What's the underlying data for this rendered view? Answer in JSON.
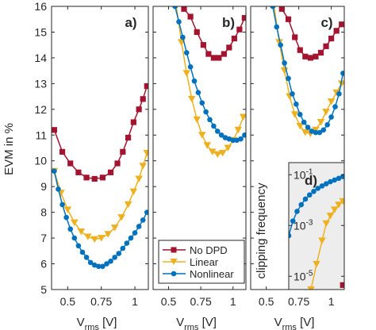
{
  "colors": {
    "no_dpd": "#A2142F",
    "linear": "#EDB120",
    "nonlinear": "#0072BD",
    "inset_bg": "#ededed"
  },
  "legend": {
    "entries": [
      {
        "name": "No DPD",
        "marker": "square",
        "color": "#A2142F"
      },
      {
        "name": "Linear",
        "marker": "triangle-down",
        "color": "#EDB120"
      },
      {
        "name": "Nonlinear",
        "marker": "circle",
        "color": "#0072BD"
      }
    ],
    "placement": "bottom-right of panel b"
  },
  "chart_data": [
    {
      "type": "line",
      "panel": "a)",
      "xlabel": "V_rms [V]",
      "xlabel_main": "V",
      "xlabel_sub": "rms",
      "xlabel_unit": "[V]",
      "ylabel": "EVM in %",
      "xlim": [
        0.38,
        1.1
      ],
      "ylim": [
        5,
        16
      ],
      "xticks": [
        0.5,
        0.75,
        1
      ],
      "xtick_labels": [
        "0.5",
        "0.75",
        "1"
      ],
      "yticks": [
        5,
        6,
        7,
        8,
        9,
        10,
        11,
        12,
        13,
        14,
        15,
        16
      ],
      "ytick_labels": [
        "5",
        "6",
        "7",
        "8",
        "9",
        "10",
        "11",
        "12",
        "13",
        "14",
        "15",
        "16"
      ],
      "series": [
        {
          "name": "No DPD",
          "marker": "square",
          "color": "#A2142F",
          "x": [
            0.4,
            0.46,
            0.52,
            0.58,
            0.64,
            0.7,
            0.76,
            0.82,
            0.87,
            0.91,
            0.95,
            0.99,
            1.03,
            1.06,
            1.09
          ],
          "y": [
            11.2,
            10.35,
            9.9,
            9.55,
            9.35,
            9.3,
            9.35,
            9.55,
            9.9,
            10.35,
            10.9,
            11.5,
            12.0,
            12.4,
            12.9
          ]
        },
        {
          "name": "Linear",
          "marker": "triangle-down",
          "color": "#EDB120",
          "x": [
            0.4,
            0.45,
            0.5,
            0.55,
            0.6,
            0.65,
            0.7,
            0.75,
            0.8,
            0.85,
            0.9,
            0.95,
            0.99,
            1.03,
            1.06,
            1.09
          ],
          "y": [
            9.6,
            8.75,
            8.1,
            7.6,
            7.25,
            7.05,
            6.95,
            7.0,
            7.15,
            7.4,
            7.8,
            8.3,
            8.8,
            9.3,
            9.8,
            10.3
          ]
        },
        {
          "name": "Nonlinear",
          "marker": "circle",
          "color": "#0072BD",
          "x": [
            0.4,
            0.43,
            0.46,
            0.49,
            0.52,
            0.55,
            0.58,
            0.61,
            0.64,
            0.67,
            0.7,
            0.73,
            0.76,
            0.79,
            0.82,
            0.85,
            0.88,
            0.91,
            0.94,
            0.97,
            1.0,
            1.03,
            1.06,
            1.09
          ],
          "y": [
            9.6,
            8.9,
            8.3,
            7.8,
            7.35,
            7.0,
            6.7,
            6.45,
            6.25,
            6.05,
            5.95,
            5.9,
            5.9,
            6.0,
            6.1,
            6.25,
            6.4,
            6.6,
            6.8,
            7.0,
            7.2,
            7.45,
            7.7,
            8.0
          ]
        }
      ]
    },
    {
      "type": "line",
      "panel": "b)",
      "xlabel": "V_rms [V]",
      "xlabel_main": "V",
      "xlabel_sub": "rms",
      "xlabel_unit": "[V]",
      "xlim": [
        0.38,
        1.1
      ],
      "ylim": [
        5,
        16
      ],
      "xticks": [
        0.5,
        0.75,
        1
      ],
      "xtick_labels": [
        "0.5",
        "0.75",
        "1"
      ],
      "series": [
        {
          "name": "No DPD",
          "marker": "square",
          "color": "#A2142F",
          "x": [
            0.62,
            0.67,
            0.72,
            0.77,
            0.81,
            0.85,
            0.89,
            0.93,
            0.97,
            1.01,
            1.05,
            1.09
          ],
          "y": [
            15.9,
            15.6,
            15.0,
            14.5,
            14.15,
            14.0,
            14.0,
            14.15,
            14.4,
            14.75,
            15.1,
            15.55
          ]
        },
        {
          "name": "Linear",
          "marker": "triangle-down",
          "color": "#EDB120",
          "x": [
            0.56,
            0.6,
            0.64,
            0.68,
            0.72,
            0.76,
            0.8,
            0.84,
            0.88,
            0.92,
            0.96,
            1.0,
            1.04,
            1.08
          ],
          "y": [
            16.0,
            14.6,
            13.4,
            12.4,
            11.6,
            11.0,
            10.6,
            10.35,
            10.25,
            10.3,
            10.5,
            10.8,
            11.2,
            11.7
          ]
        },
        {
          "name": "Nonlinear",
          "marker": "circle",
          "color": "#0072BD",
          "x": [
            0.55,
            0.58,
            0.61,
            0.64,
            0.67,
            0.7,
            0.73,
            0.76,
            0.79,
            0.82,
            0.85,
            0.88,
            0.91,
            0.94,
            0.97,
            1.0,
            1.03,
            1.06,
            1.09
          ],
          "y": [
            16.0,
            15.4,
            14.8,
            14.2,
            13.65,
            13.1,
            12.65,
            12.25,
            11.9,
            11.6,
            11.35,
            11.15,
            11.0,
            10.9,
            10.85,
            10.8,
            10.8,
            10.85,
            11.0
          ]
        }
      ]
    },
    {
      "type": "line",
      "panel": "c)",
      "xlabel": "V_rms [V]",
      "xlabel_main": "V",
      "xlabel_sub": "rms",
      "xlabel_unit": "[V]",
      "xlim": [
        0.38,
        1.1
      ],
      "ylim": [
        5,
        16
      ],
      "xticks": [
        0.5,
        0.75,
        1
      ],
      "xtick_labels": [
        "0.5",
        "0.75",
        "1"
      ],
      "series": [
        {
          "name": "No DPD",
          "marker": "square",
          "color": "#A2142F",
          "x": [
            0.62,
            0.67,
            0.72,
            0.76,
            0.8,
            0.84,
            0.88,
            0.92,
            0.96,
            1.0,
            1.04,
            1.08
          ],
          "y": [
            15.9,
            15.5,
            14.8,
            14.3,
            14.05,
            14.0,
            14.05,
            14.2,
            14.45,
            14.75,
            15.05,
            15.3
          ]
        },
        {
          "name": "Linear",
          "marker": "triangle-down",
          "color": "#EDB120",
          "x": [
            0.56,
            0.6,
            0.64,
            0.68,
            0.72,
            0.76,
            0.8,
            0.84,
            0.88,
            0.92,
            0.96,
            1.0,
            1.04,
            1.08
          ],
          "y": [
            16.0,
            14.6,
            13.5,
            12.5,
            11.8,
            11.35,
            11.1,
            11.05,
            11.2,
            11.5,
            11.9,
            12.3,
            12.65,
            13.0
          ]
        },
        {
          "name": "Nonlinear",
          "marker": "circle",
          "color": "#0072BD",
          "x": [
            0.55,
            0.58,
            0.61,
            0.64,
            0.67,
            0.7,
            0.73,
            0.76,
            0.79,
            0.82,
            0.85,
            0.88,
            0.91,
            0.94,
            0.97,
            1.0,
            1.03,
            1.06,
            1.09
          ],
          "y": [
            16.0,
            15.2,
            14.5,
            13.8,
            13.2,
            12.6,
            12.2,
            11.8,
            11.5,
            11.3,
            11.15,
            11.1,
            11.1,
            11.2,
            11.4,
            11.7,
            12.1,
            12.6,
            13.4
          ]
        }
      ]
    },
    {
      "type": "line",
      "panel": "d)",
      "ylabel": "clipping frequency",
      "yscale": "log",
      "xlim": [
        0.7,
        1.1
      ],
      "ylim": [
        3e-06,
        0.3
      ],
      "yticks": [
        1e-05,
        0.001,
        0.1
      ],
      "ytick_labels": [
        "10^-5",
        "10^-3",
        "10^-1"
      ],
      "ytick_base": "10",
      "ytick_exponents": [
        "-5",
        "-3",
        "-1"
      ],
      "series": [
        {
          "name": "No DPD",
          "marker": "square",
          "color": "#A2142F",
          "x": [
            1.09
          ],
          "y": [
            4.5e-06
          ]
        },
        {
          "name": "Linear",
          "marker": "triangle-down",
          "color": "#EDB120",
          "x": [
            0.86,
            0.9,
            0.94,
            0.97,
            1.0,
            1.03,
            1.06,
            1.09
          ],
          "y": [
            3e-06,
            3e-05,
            0.00025,
            0.0012,
            0.0024,
            0.0042,
            0.0065,
            0.009
          ]
        },
        {
          "name": "Nonlinear",
          "marker": "circle",
          "color": "#0072BD",
          "x": [
            0.7,
            0.73,
            0.76,
            0.79,
            0.82,
            0.85,
            0.88,
            0.91,
            0.94,
            0.97,
            1.0,
            1.03,
            1.06,
            1.09
          ],
          "y": [
            0.0004,
            0.0015,
            0.0036,
            0.0066,
            0.011,
            0.016,
            0.022,
            0.029,
            0.036,
            0.044,
            0.053,
            0.062,
            0.072,
            0.085
          ]
        }
      ]
    }
  ]
}
